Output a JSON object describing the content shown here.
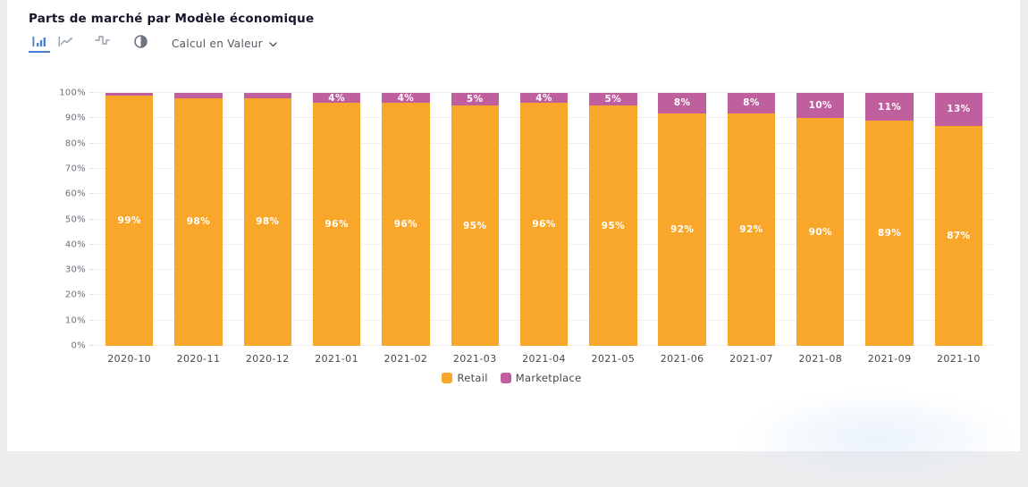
{
  "header": {
    "title": "Parts de marché par Modèle économique",
    "toolbar": {
      "icons": [
        {
          "name": "bar-chart-icon",
          "active": true
        },
        {
          "name": "line-chart-icon",
          "active": false
        },
        {
          "name": "step-chart-icon",
          "active": false
        },
        {
          "name": "contrast-icon",
          "active": false
        }
      ],
      "dropdown_label": "Calcul en Valeur"
    }
  },
  "colors": {
    "retail": "#F9A72B",
    "marketplace": "#BF5F9E",
    "active_icon": "#4A7FD4",
    "inactive_icon": "#A3ABB8"
  },
  "chart_data": {
    "type": "bar",
    "stacked": true,
    "title": "Parts de marché par Modèle économique",
    "categories": [
      "2020-10",
      "2020-11",
      "2020-12",
      "2021-01",
      "2021-02",
      "2021-03",
      "2021-04",
      "2021-05",
      "2021-06",
      "2021-07",
      "2021-08",
      "2021-09",
      "2021-10"
    ],
    "series": [
      {
        "name": "Retail",
        "color": "#F9A72B",
        "values": [
          99,
          98,
          98,
          96,
          96,
          95,
          96,
          95,
          92,
          92,
          90,
          89,
          87
        ],
        "labels": [
          "99%",
          "98%",
          "98%",
          "96%",
          "96%",
          "95%",
          "96%",
          "95%",
          "92%",
          "92%",
          "90%",
          "89%",
          "87%"
        ]
      },
      {
        "name": "Marketplace",
        "color": "#BF5F9E",
        "values": [
          1,
          2,
          2,
          4,
          4,
          5,
          4,
          5,
          8,
          8,
          10,
          11,
          13
        ],
        "labels": [
          "",
          "",
          "",
          "4%",
          "4%",
          "5%",
          "4%",
          "5%",
          "8%",
          "8%",
          "10%",
          "11%",
          "13%"
        ]
      }
    ],
    "xlabel": "",
    "ylabel": "",
    "ylim": [
      0,
      100
    ],
    "y_ticks": [
      "0%",
      "10%",
      "20%",
      "30%",
      "40%",
      "50%",
      "60%",
      "70%",
      "80%",
      "90%",
      "100%"
    ],
    "grid": true,
    "legend_position": "bottom"
  }
}
